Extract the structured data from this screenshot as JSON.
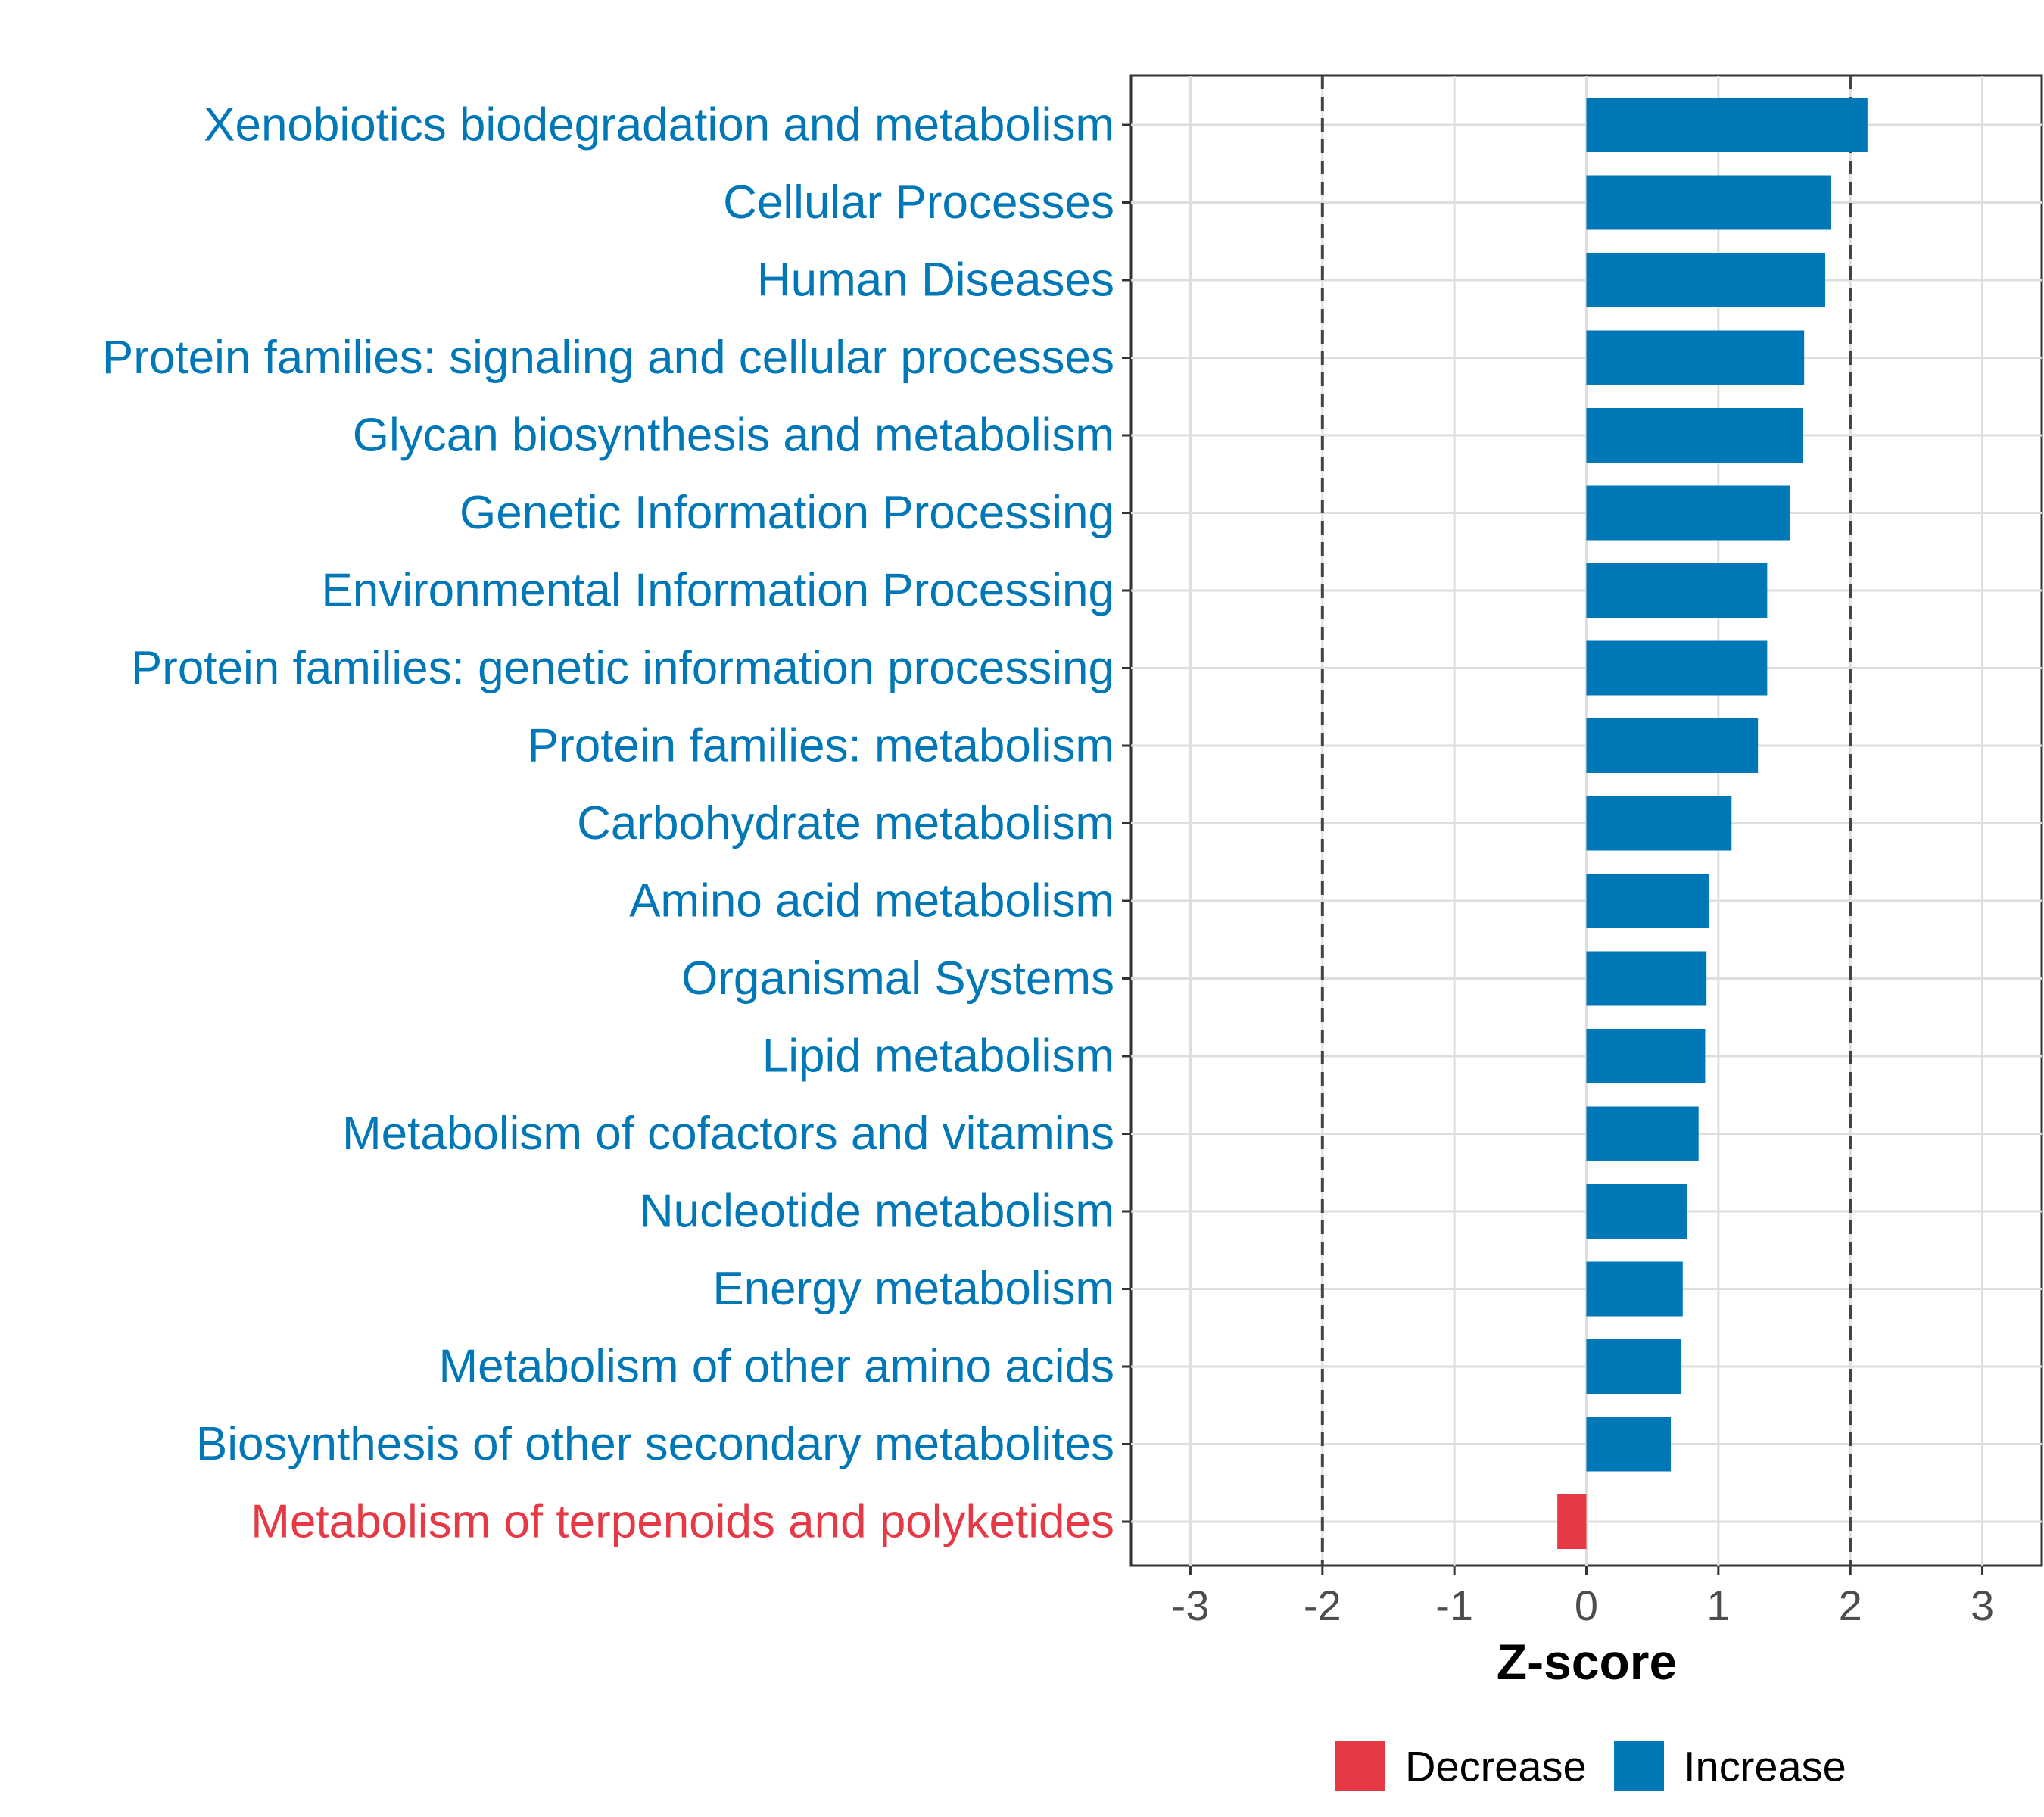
{
  "chart_data": {
    "type": "bar",
    "orientation": "horizontal",
    "title": "",
    "xlabel": "Z-score",
    "ylabel": "",
    "xlim": [
      -3.45,
      3.45
    ],
    "xticks": [
      -3,
      -2,
      -1,
      0,
      1,
      2,
      3
    ],
    "reference_lines": [
      -2,
      2
    ],
    "grid": true,
    "categories": [
      "Xenobiotics biodegradation and metabolism",
      "Cellular Processes",
      "Human Diseases",
      "Protein families: signaling and cellular processes",
      "Glycan biosynthesis and metabolism",
      "Genetic Information Processing",
      "Environmental Information Processing",
      "Protein families: genetic information processing",
      "Protein families: metabolism",
      "Carbohydrate metabolism",
      "Amino acid metabolism",
      "Organismal Systems",
      "Lipid metabolism",
      "Metabolism of cofactors and vitamins",
      "Nucleotide metabolism",
      "Energy metabolism",
      "Metabolism of other amino acids",
      "Biosynthesis of other secondary metabolites",
      "Metabolism of terpenoids and polyketides"
    ],
    "values": [
      2.13,
      1.85,
      1.81,
      1.65,
      1.64,
      1.54,
      1.37,
      1.37,
      1.3,
      1.1,
      0.93,
      0.91,
      0.9,
      0.85,
      0.76,
      0.73,
      0.72,
      0.64,
      -0.22
    ],
    "groups": [
      "Increase",
      "Increase",
      "Increase",
      "Increase",
      "Increase",
      "Increase",
      "Increase",
      "Increase",
      "Increase",
      "Increase",
      "Increase",
      "Increase",
      "Increase",
      "Increase",
      "Increase",
      "Increase",
      "Increase",
      "Increase",
      "Decrease"
    ],
    "legend": {
      "position": "bottom",
      "entries": [
        {
          "label": "Decrease",
          "color": "#e63946"
        },
        {
          "label": "Increase",
          "color": "#0077b6"
        }
      ]
    },
    "colors": {
      "Increase": "#0077b6",
      "Decrease": "#e63946"
    }
  }
}
